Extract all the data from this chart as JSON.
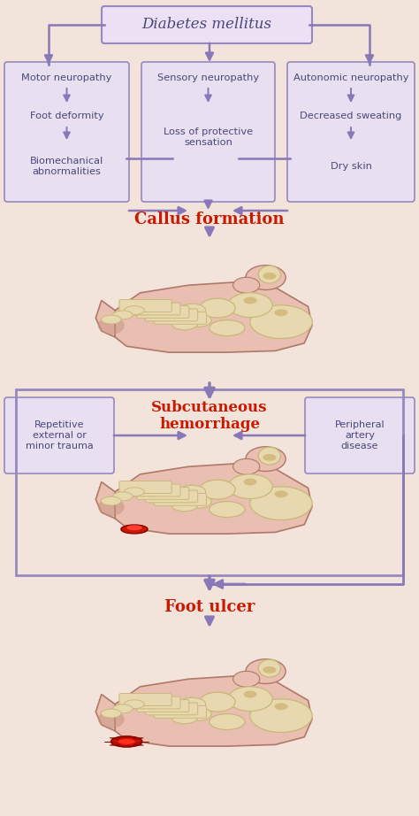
{
  "bg_color": "#f2e4da",
  "box_color_top": "#ece0f5",
  "box_color_side": "#e8e0f0",
  "arrow_color": "#8878b8",
  "border_color": "#9888c0",
  "text_color_dark": "#484878",
  "text_color_red": "#cc1800",
  "title": "Diabetes mellitus",
  "col1_title": "Motor neuropathy",
  "col1_item1": "Foot deformity",
  "col1_item2": "Biomechanical\nabnormalities",
  "col2_title": "Sensory neuropathy",
  "col2_item1": "Loss of protective\nsensation",
  "col3_title": "Autonomic neuropathy",
  "col3_item1": "Decreased sweating",
  "col3_item2": "Dry skin",
  "label1": "Callus formation",
  "label2": "Subcutaneous\nhemorrhage",
  "label3": "Foot ulcer",
  "box_left": "Repetitive\nexternal or\nminor trauma",
  "box_right": "Peripheral\nartery\ndisease",
  "skin_color": "#dba898",
  "skin_light": "#e8bfb0",
  "bone_color": "#e8d8b0",
  "bone_edge": "#c8b878",
  "foot_outline": "#b07868"
}
